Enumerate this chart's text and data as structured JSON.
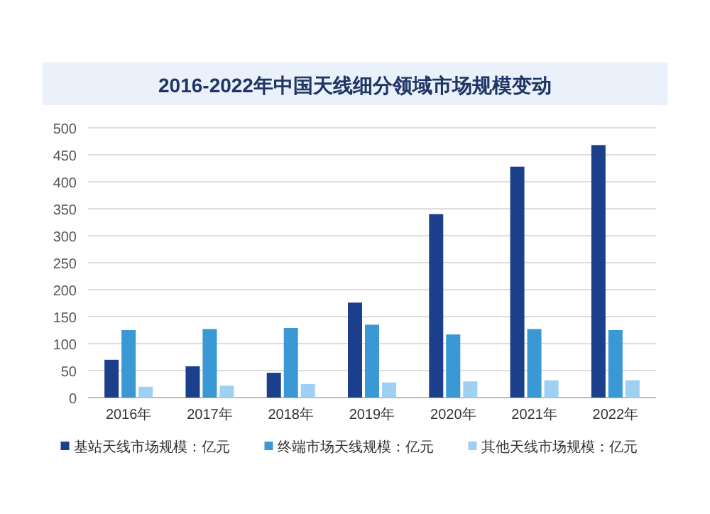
{
  "chart_data": {
    "type": "bar",
    "title": "2016-2022年中国天线细分领域市场规模变动",
    "categories": [
      "2016年",
      "2017年",
      "2018年",
      "2019年",
      "2020年",
      "2021年",
      "2022年"
    ],
    "series": [
      {
        "name": "基站天线市场规模：亿元",
        "color": "#1c3f8c",
        "values": [
          70,
          58,
          46,
          176,
          340,
          428,
          468
        ]
      },
      {
        "name": "终端市场天线规模：亿元",
        "color": "#3a98d5",
        "values": [
          125,
          127,
          129,
          135,
          117,
          127,
          125
        ]
      },
      {
        "name": "其他天线市场规模：亿元",
        "color": "#9dd0f2",
        "values": [
          20,
          22,
          25,
          28,
          30,
          32,
          32
        ]
      }
    ],
    "ylim": [
      0,
      500
    ],
    "yticks": [
      0,
      50,
      100,
      150,
      200,
      250,
      300,
      350,
      400,
      450,
      500
    ],
    "grid": "y",
    "legend": "bottom"
  }
}
